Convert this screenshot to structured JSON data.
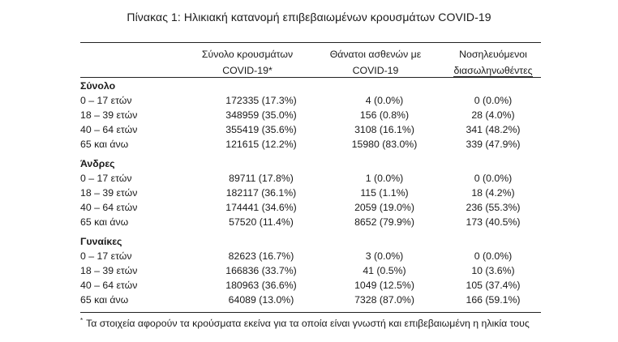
{
  "title": "Πίνακας 1: Ηλικιακή κατανομή επιβεβαιωμένων κρουσμάτων COVID-19",
  "headers": {
    "col1": [
      "Σύνολο κρουσμάτων",
      "COVID-19*"
    ],
    "col2": [
      "Θάνατοι ασθενών με",
      "COVID-19"
    ],
    "col3": [
      "Νοσηλευόμενοι",
      "διασωληνωθέντες"
    ]
  },
  "groups": [
    {
      "name": "Σύνολο",
      "rows": [
        {
          "label": "0 – 17 ετών",
          "cases": "172335 (17.3%)",
          "deaths": "4 (0.0%)",
          "intubated": "0 (0.0%)"
        },
        {
          "label": "18 – 39 ετών",
          "cases": "348959 (35.0%)",
          "deaths": "156 (0.8%)",
          "intubated": "28 (4.0%)"
        },
        {
          "label": "40 – 64 ετών",
          "cases": "355419 (35.6%)",
          "deaths": "3108 (16.1%)",
          "intubated": "341 (48.2%)"
        },
        {
          "label": "65 και άνω",
          "cases": "121615 (12.2%)",
          "deaths": "15980 (83.0%)",
          "intubated": "339 (47.9%)"
        }
      ]
    },
    {
      "name": "Άνδρες",
      "rows": [
        {
          "label": "0 – 17 ετών",
          "cases": "89711 (17.8%)",
          "deaths": "1 (0.0%)",
          "intubated": "0 (0.0%)"
        },
        {
          "label": "18 – 39 ετών",
          "cases": "182117 (36.1%)",
          "deaths": "115 (1.1%)",
          "intubated": "18 (4.2%)"
        },
        {
          "label": "40 – 64 ετών",
          "cases": "174441 (34.6%)",
          "deaths": "2059 (19.0%)",
          "intubated": "236 (55.3%)"
        },
        {
          "label": "65 και άνω",
          "cases": "57520 (11.4%)",
          "deaths": "8652 (79.9%)",
          "intubated": "173 (40.5%)"
        }
      ]
    },
    {
      "name": "Γυναίκες",
      "rows": [
        {
          "label": "0 – 17 ετών",
          "cases": "82623 (16.7%)",
          "deaths": "3 (0.0%)",
          "intubated": "0 (0.0%)"
        },
        {
          "label": "18 – 39 ετών",
          "cases": "166836 (33.7%)",
          "deaths": "41 (0.5%)",
          "intubated": "10 (3.6%)"
        },
        {
          "label": "40 – 64 ετών",
          "cases": "180963 (36.6%)",
          "deaths": "1049 (12.5%)",
          "intubated": "105 (37.4%)"
        },
        {
          "label": "65 και άνω",
          "cases": "64089 (13.0%)",
          "deaths": "7328 (87.0%)",
          "intubated": "166 (59.1%)"
        }
      ]
    }
  ],
  "footnote": {
    "marker": "*",
    "text": "Τα στοιχεία αφορούν τα κρούσματα εκείνα για τα οποία είναι γνωστή και επιβεβαιωμένη η ηλικία τους"
  }
}
